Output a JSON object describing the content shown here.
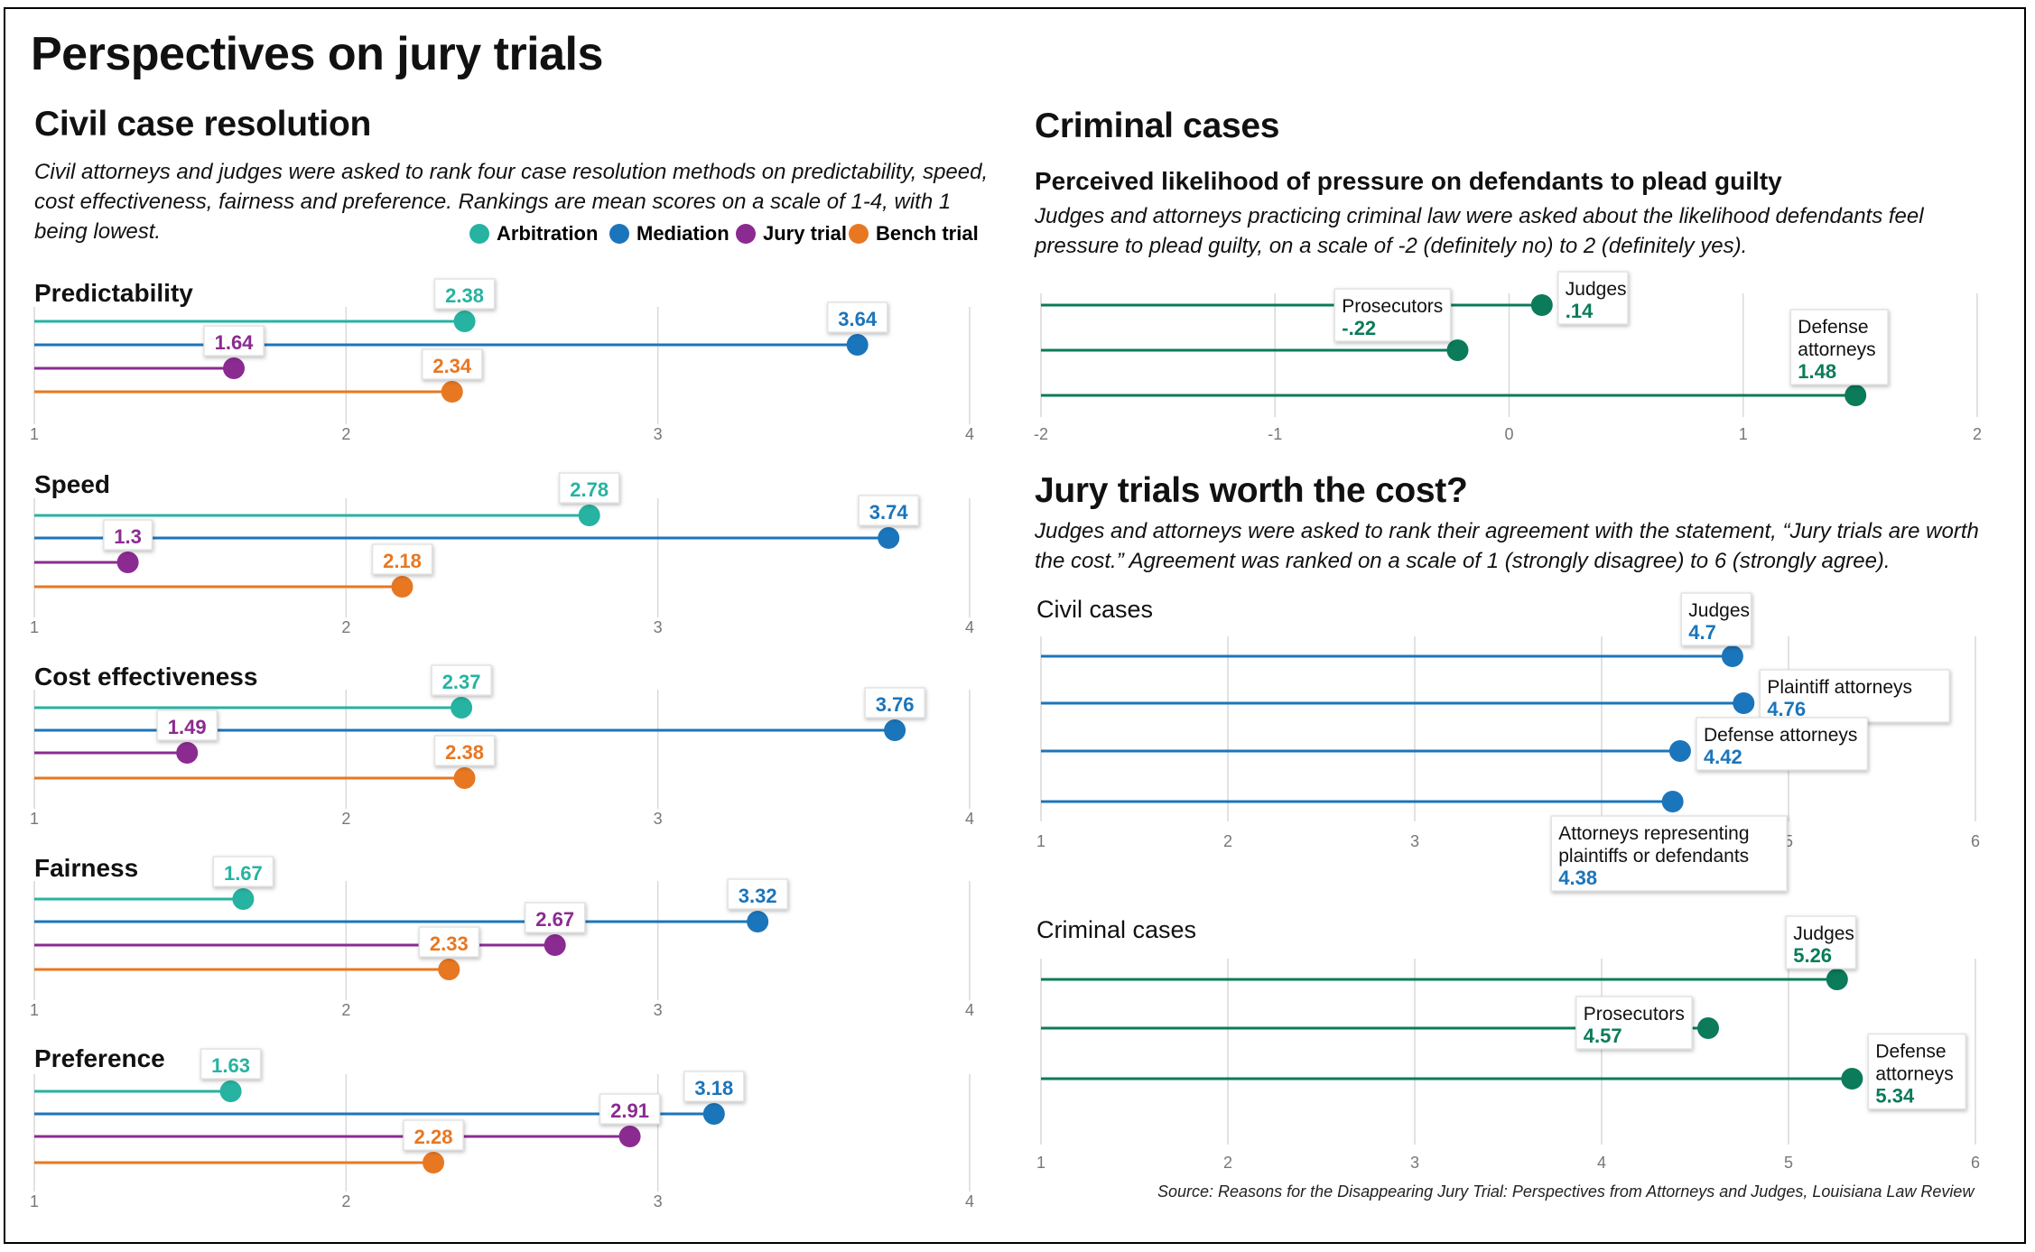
{
  "title": "Perspectives on jury trials",
  "colors": {
    "arbitration": "#26b3a1",
    "mediation": "#1b75bb",
    "jury_trial": "#8b2b91",
    "bench_trial": "#e87722",
    "criminal_green": "#0b7b5a",
    "grid": "#d9d9d9",
    "axis_text": "#777777"
  },
  "civil": {
    "heading": "Civil case resolution",
    "description": "Civil attorneys and judges were asked to rank four case resolution methods on predictability, speed, cost effectiveness, fairness and preference. Rankings are mean scores on a scale of 1-4, with 1 being lowest.",
    "legend": [
      {
        "label": "Arbitration",
        "color": "#26b3a1"
      },
      {
        "label": "Mediation",
        "color": "#1b75bb"
      },
      {
        "label": "Jury trial",
        "color": "#8b2b91"
      },
      {
        "label": "Bench trial",
        "color": "#e87722"
      }
    ]
  },
  "criminal": {
    "heading": "Criminal cases",
    "subheading": "Perceived likelihood of pressure on defendants to plead guilty",
    "description": "Judges and attorneys practicing criminal law were asked about the likelihood defendants feel pressure to plead guilty, on a scale of -2 (definitely no) to 2 (definitely yes)."
  },
  "cost": {
    "heading": "Jury trials worth the cost?",
    "description": "Judges and attorneys were asked to rank their agreement with the statement, “Jury trials are worth the cost.” Agreement was ranked on a scale of 1 (strongly disagree) to 6 (strongly agree)."
  },
  "source": "Source: Reasons for the Disappearing Jury Trial: Perspectives from Attorneys and Judges, Louisiana Law Review",
  "chart_data": [
    {
      "type": "dot",
      "id": "predictability",
      "title": "Predictability",
      "xlim": [
        1,
        4
      ],
      "ticks": [
        "1",
        "2",
        "3",
        "4"
      ],
      "series": [
        {
          "name": "Arbitration",
          "value": 2.38,
          "label": "2.38",
          "color": "#26b3a1"
        },
        {
          "name": "Mediation",
          "value": 3.64,
          "label": "3.64",
          "color": "#1b75bb"
        },
        {
          "name": "Jury trial",
          "value": 1.64,
          "label": "1.64",
          "color": "#8b2b91"
        },
        {
          "name": "Bench trial",
          "value": 2.34,
          "label": "2.34",
          "color": "#e87722"
        }
      ]
    },
    {
      "type": "dot",
      "id": "speed",
      "title": "Speed",
      "xlim": [
        1,
        4
      ],
      "ticks": [
        "1",
        "2",
        "3",
        "4"
      ],
      "series": [
        {
          "name": "Arbitration",
          "value": 2.78,
          "label": "2.78",
          "color": "#26b3a1"
        },
        {
          "name": "Mediation",
          "value": 3.74,
          "label": "3.74",
          "color": "#1b75bb"
        },
        {
          "name": "Jury trial",
          "value": 1.3,
          "label": "1.3",
          "color": "#8b2b91"
        },
        {
          "name": "Bench trial",
          "value": 2.18,
          "label": "2.18",
          "color": "#e87722"
        }
      ]
    },
    {
      "type": "dot",
      "id": "cost-effectiveness",
      "title": "Cost effectiveness",
      "xlim": [
        1,
        4
      ],
      "ticks": [
        "1",
        "2",
        "3",
        "4"
      ],
      "series": [
        {
          "name": "Arbitration",
          "value": 2.37,
          "label": "2.37",
          "color": "#26b3a1"
        },
        {
          "name": "Mediation",
          "value": 3.76,
          "label": "3.76",
          "color": "#1b75bb"
        },
        {
          "name": "Jury trial",
          "value": 1.49,
          "label": "1.49",
          "color": "#8b2b91"
        },
        {
          "name": "Bench trial",
          "value": 2.38,
          "label": "2.38",
          "color": "#e87722"
        }
      ]
    },
    {
      "type": "dot",
      "id": "fairness",
      "title": "Fairness",
      "xlim": [
        1,
        4
      ],
      "ticks": [
        "1",
        "2",
        "3",
        "4"
      ],
      "series": [
        {
          "name": "Arbitration",
          "value": 1.67,
          "label": "1.67",
          "color": "#26b3a1"
        },
        {
          "name": "Mediation",
          "value": 3.32,
          "label": "3.32",
          "color": "#1b75bb"
        },
        {
          "name": "Jury trial",
          "value": 2.67,
          "label": "2.67",
          "color": "#8b2b91"
        },
        {
          "name": "Bench trial",
          "value": 2.33,
          "label": "2.33",
          "color": "#e87722"
        }
      ]
    },
    {
      "type": "dot",
      "id": "preference",
      "title": "Preference",
      "xlim": [
        1,
        4
      ],
      "ticks": [
        "1",
        "2",
        "3",
        "4"
      ],
      "series": [
        {
          "name": "Arbitration",
          "value": 1.63,
          "label": "1.63",
          "color": "#26b3a1"
        },
        {
          "name": "Mediation",
          "value": 3.18,
          "label": "3.18",
          "color": "#1b75bb"
        },
        {
          "name": "Jury trial",
          "value": 2.91,
          "label": "2.91",
          "color": "#8b2b91"
        },
        {
          "name": "Bench trial",
          "value": 2.28,
          "label": "2.28",
          "color": "#e87722"
        }
      ]
    },
    {
      "type": "dot",
      "id": "plead-guilty",
      "title": "Perceived likelihood of pressure on defendants to plead guilty",
      "xlim": [
        -2,
        2
      ],
      "ticks": [
        "-2",
        "-1",
        "0",
        "1",
        "2"
      ],
      "series": [
        {
          "name": "Judges",
          "value": 0.14,
          "label": ".14",
          "color": "#0b7b5a"
        },
        {
          "name": "Prosecutors",
          "value": -0.22,
          "label": "-.22",
          "color": "#0b7b5a"
        },
        {
          "name": "Defense attorneys",
          "value": 1.48,
          "label": "1.48",
          "color": "#0b7b5a"
        }
      ]
    },
    {
      "type": "dot",
      "id": "worth-cost-civil",
      "title": "Civil cases",
      "xlim": [
        1,
        6
      ],
      "ticks": [
        "1",
        "2",
        "3",
        "4",
        "5",
        "6"
      ],
      "series": [
        {
          "name": "Judges",
          "value": 4.7,
          "label": "4.7",
          "color": "#1b75bb"
        },
        {
          "name": "Plaintiff attorneys",
          "value": 4.76,
          "label": "4.76",
          "color": "#1b75bb"
        },
        {
          "name": "Defense attorneys",
          "value": 4.42,
          "label": "4.42",
          "color": "#1b75bb"
        },
        {
          "name": "Attorneys representing plaintiffs or defendants",
          "value": 4.38,
          "label": "4.38",
          "color": "#1b75bb"
        }
      ]
    },
    {
      "type": "dot",
      "id": "worth-cost-criminal",
      "title": "Criminal cases",
      "xlim": [
        1,
        6
      ],
      "ticks": [
        "1",
        "2",
        "3",
        "4",
        "5",
        "6"
      ],
      "series": [
        {
          "name": "Judges",
          "value": 5.26,
          "label": "5.26",
          "color": "#0b7b5a"
        },
        {
          "name": "Prosecutors",
          "value": 4.57,
          "label": "4.57",
          "color": "#0b7b5a"
        },
        {
          "name": "Defense attorneys",
          "value": 5.34,
          "label": "5.34",
          "color": "#0b7b5a"
        }
      ]
    }
  ]
}
